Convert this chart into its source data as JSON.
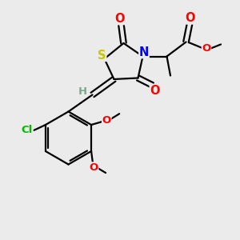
{
  "bg_color": "#ebebeb",
  "atom_colors": {
    "C": "#000000",
    "H": "#7aaa8a",
    "O": "#ff0000",
    "N": "#0000ff",
    "S": "#c8c800",
    "Cl": "#00bb00"
  },
  "bond_color": "#000000",
  "fig_width": 3.0,
  "fig_height": 3.0,
  "dpi": 100
}
